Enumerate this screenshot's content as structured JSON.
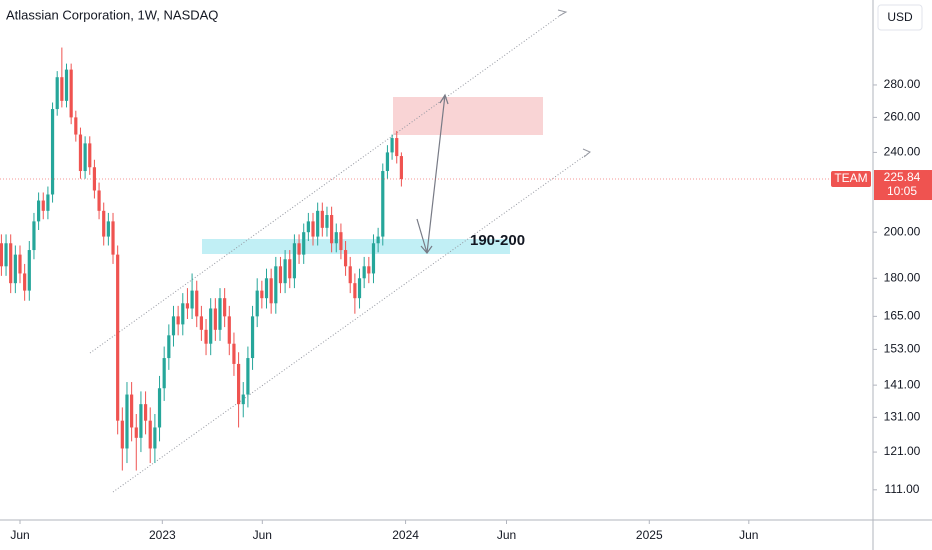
{
  "chart_data": {
    "type": "candlestick",
    "title": "Atlassian Corporation, 1W, NASDAQ",
    "currency": "USD",
    "symbol": "TEAM",
    "countdown": "10:05",
    "annotation": "190-200",
    "log_scale": true,
    "grid": false,
    "up_color": "#26a69a",
    "down_color": "#ef5350",
    "xlim": [
      -4.3,
      183.4
    ],
    "ylim": [
      103.6,
      340
    ],
    "xticks": [
      {
        "value": 0,
        "label": "Jun"
      },
      {
        "value": 30.6,
        "label": "2023"
      },
      {
        "value": 52.1,
        "label": "Jun"
      },
      {
        "value": 82.9,
        "label": "2024"
      },
      {
        "value": 104.6,
        "label": "Jun"
      },
      {
        "value": 135.3,
        "label": "2025"
      },
      {
        "value": 156.7,
        "label": "Jun"
      }
    ],
    "yticks": [
      {
        "value": 280,
        "label": "280.00"
      },
      {
        "value": 260,
        "label": "260.00"
      },
      {
        "value": 240,
        "label": "240.00"
      },
      {
        "value": 200,
        "label": "200.00"
      },
      {
        "value": 180,
        "label": "180.00"
      },
      {
        "value": 165,
        "label": "165.00"
      },
      {
        "value": 153,
        "label": "153.00"
      },
      {
        "value": 141,
        "label": "141.00"
      },
      {
        "value": 131,
        "label": "131.00"
      },
      {
        "value": 121,
        "label": "121.00"
      },
      {
        "value": 111,
        "label": "111.00"
      }
    ],
    "x": [
      -4,
      -3,
      -2,
      -1,
      0,
      1,
      2,
      3,
      4,
      5,
      6,
      7,
      8,
      9,
      10,
      11,
      12,
      13,
      14,
      15,
      16,
      17,
      18,
      19,
      20,
      21,
      22,
      23,
      24,
      25,
      26,
      27,
      28,
      29,
      30,
      31,
      32,
      33,
      34,
      35,
      36,
      37,
      38,
      39,
      40,
      41,
      42,
      43,
      44,
      45,
      46,
      47,
      48,
      49,
      50,
      51,
      52,
      53,
      54,
      55,
      56,
      57,
      58,
      59,
      60,
      61,
      62,
      63,
      64,
      65,
      66,
      67,
      68,
      69,
      70,
      71,
      72,
      73,
      74,
      75,
      76,
      77,
      78,
      79,
      80,
      81,
      82
    ],
    "open": [
      195,
      185,
      195,
      178,
      190,
      182,
      175,
      192,
      205,
      215,
      210,
      218,
      265,
      285,
      270,
      290,
      260,
      250,
      230,
      245,
      232,
      220,
      210,
      198,
      205,
      190,
      130,
      122,
      138,
      128,
      125,
      135,
      130,
      122,
      128,
      140,
      150,
      158,
      165,
      162,
      170,
      168,
      175,
      165,
      160,
      155,
      168,
      160,
      172,
      165,
      155,
      148,
      135,
      138,
      150,
      165,
      175,
      172,
      180,
      170,
      185,
      178,
      188,
      180,
      195,
      190,
      200,
      205,
      198,
      210,
      202,
      208,
      195,
      200,
      192,
      185,
      178,
      172,
      180,
      185,
      182,
      195,
      198,
      230,
      240,
      248,
      238
    ],
    "high": [
      199,
      199,
      199,
      194,
      194,
      186,
      196,
      209,
      219,
      219,
      222,
      269,
      289,
      305,
      294,
      294,
      264,
      254,
      249,
      249,
      236,
      224,
      214,
      209,
      209,
      194,
      134,
      142,
      142,
      132,
      139,
      139,
      134,
      132,
      144,
      154,
      162,
      169,
      169,
      174,
      176,
      182,
      179,
      169,
      164,
      172,
      172,
      176,
      176,
      169,
      159,
      152,
      142,
      154,
      169,
      180,
      179,
      184,
      184,
      189,
      189,
      192,
      192,
      199,
      199,
      204,
      209,
      209,
      214,
      214,
      212,
      212,
      204,
      204,
      196,
      189,
      182,
      184,
      189,
      189,
      199,
      202,
      234,
      244,
      250,
      252,
      240
    ],
    "low": [
      181,
      181,
      174,
      174,
      178,
      171,
      171,
      188,
      201,
      206,
      206,
      214,
      261,
      266,
      266,
      256,
      246,
      226,
      226,
      228,
      216,
      206,
      194,
      194,
      186,
      126,
      116,
      118,
      124,
      116,
      121,
      126,
      118,
      118,
      124,
      136,
      146,
      154,
      158,
      158,
      164,
      164,
      161,
      156,
      151,
      151,
      156,
      156,
      161,
      151,
      144,
      128,
      131,
      134,
      146,
      161,
      168,
      168,
      166,
      166,
      174,
      174,
      176,
      176,
      186,
      186,
      196,
      194,
      194,
      198,
      198,
      191,
      191,
      188,
      181,
      174,
      166,
      168,
      176,
      178,
      178,
      191,
      194,
      226,
      236,
      234,
      222
    ],
    "close": [
      185,
      195,
      178,
      190,
      182,
      175,
      192,
      205,
      215,
      210,
      218,
      265,
      285,
      270,
      290,
      260,
      250,
      230,
      245,
      232,
      220,
      210,
      198,
      205,
      190,
      130,
      122,
      138,
      128,
      125,
      135,
      130,
      122,
      128,
      140,
      150,
      158,
      165,
      162,
      170,
      168,
      175,
      165,
      160,
      155,
      168,
      160,
      172,
      165,
      155,
      148,
      135,
      138,
      150,
      165,
      175,
      172,
      180,
      170,
      185,
      178,
      188,
      180,
      195,
      190,
      200,
      205,
      198,
      210,
      202,
      208,
      195,
      200,
      192,
      185,
      178,
      172,
      180,
      185,
      182,
      195,
      198,
      230,
      240,
      248,
      238,
      225.84
    ]
  }
}
